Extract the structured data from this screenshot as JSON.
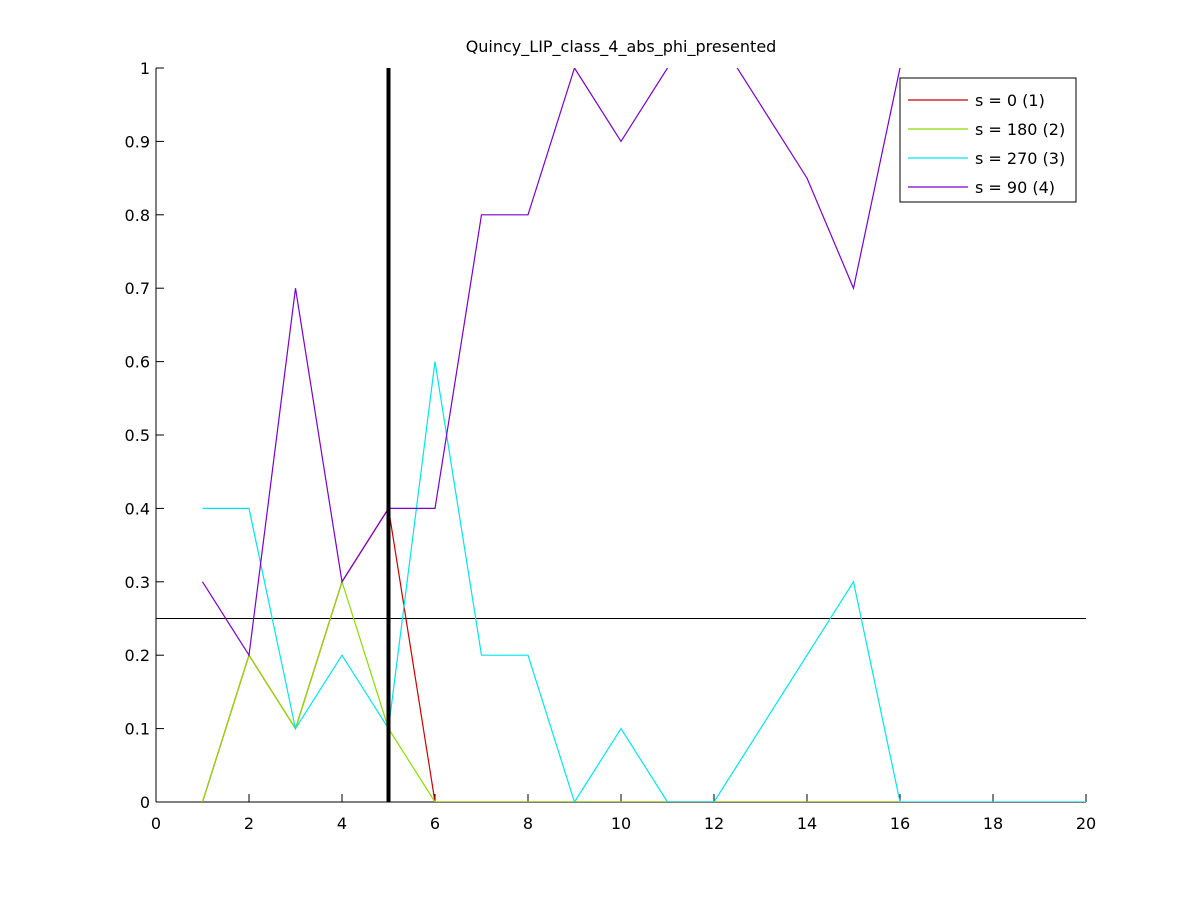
{
  "chart_data": {
    "type": "line",
    "title": "Quincy_LIP_class_4_abs_phi_presented",
    "xlabel": "",
    "ylabel": "",
    "xlim": [
      0,
      20
    ],
    "ylim": [
      0,
      1
    ],
    "xticks": [
      0,
      2,
      4,
      6,
      8,
      10,
      12,
      14,
      16,
      18,
      20
    ],
    "yticks": [
      0,
      0.1,
      0.2,
      0.3,
      0.4,
      0.5,
      0.6,
      0.7,
      0.8,
      0.9,
      1
    ],
    "grid": false,
    "legend_position": "top-right",
    "x": [
      1,
      2,
      3,
      4,
      5,
      6,
      7,
      8,
      9,
      10,
      11,
      12,
      13,
      14,
      15,
      16,
      17,
      18,
      19,
      20
    ],
    "series": [
      {
        "name": "s = 0 (1)",
        "color": "#cc0000",
        "values": [
          0,
          0.2,
          0.1,
          0.3,
          0.4,
          0,
          0,
          0,
          0,
          0,
          0,
          0,
          0,
          0,
          0,
          0,
          null,
          null,
          null,
          null
        ]
      },
      {
        "name": "s = 180 (2)",
        "color": "#88dd00",
        "values": [
          0,
          0.2,
          0.1,
          0.3,
          0.1,
          0,
          0,
          0,
          0,
          0,
          0,
          0,
          0,
          0,
          0,
          0,
          null,
          null,
          null,
          null
        ]
      },
      {
        "name": "s = 270 (3)",
        "color": "#00e5ee",
        "values": [
          0.4,
          0.4,
          0.1,
          0.2,
          0.1,
          0.6,
          0.2,
          0.2,
          0,
          0.1,
          0,
          0,
          0.1,
          0.2,
          0.3,
          0,
          0,
          0,
          0,
          0
        ]
      },
      {
        "name": "s = 90 (4)",
        "color": "#7a00cc",
        "values": [
          0.3,
          0.2,
          0.7,
          0.3,
          0.4,
          0.4,
          0.8,
          0.8,
          1,
          0.9,
          1,
          1.05,
          0.95,
          0.85,
          0.7,
          1,
          null,
          null,
          null,
          null
        ]
      }
    ],
    "reference_lines": [
      {
        "orientation": "vertical",
        "x": 5,
        "color": "#000000",
        "style": "thick"
      },
      {
        "orientation": "horizontal",
        "y": 0.25,
        "color": "#000000",
        "style": "thin"
      }
    ]
  }
}
